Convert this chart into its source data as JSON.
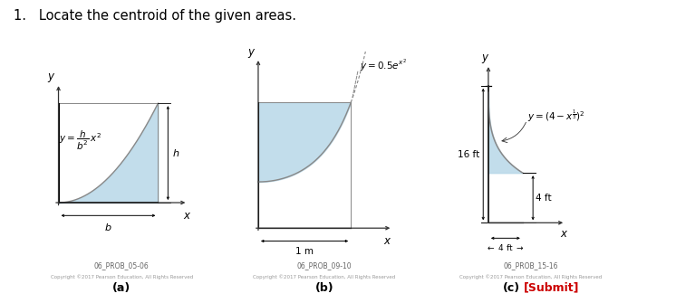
{
  "title": "1.   Locate the centroid of the given areas.",
  "title_fontsize": 10.5,
  "bg_color": "#ffffff",
  "fill_color": "#b8d8e8",
  "fill_alpha": 0.85,
  "panel_labels_abc": [
    "(a)",
    "(b)",
    "(c)"
  ],
  "submit_label": "[Submit]",
  "submit_color": "#cc0000",
  "prob_labels": [
    "06_PROB_05-06",
    "06_PROB_09-10",
    "06_PROB_15-16"
  ],
  "copyright": "Copyright ©2017 Pearson Education, All Rights Reserved",
  "line_color": "#888888",
  "axis_color": "#333333",
  "arrow_color": "#555555"
}
